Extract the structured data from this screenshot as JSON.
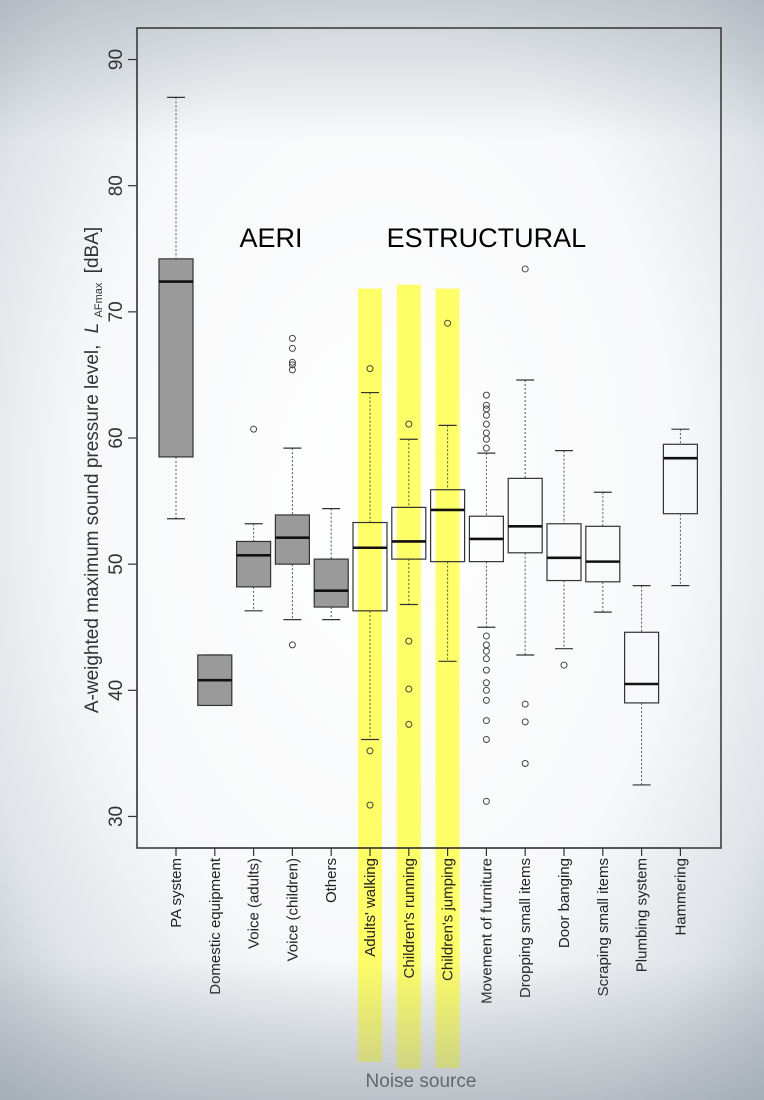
{
  "chart_data": {
    "type": "box",
    "xlabel": "Noise source",
    "ylabel_prefix": "A-weighted maximum sound pressure level,",
    "ylabel_symbol": "L",
    "ylabel_subscript": "AFmax",
    "ylabel_unit": "[dBA]",
    "ylim": [
      27.5,
      92.5
    ],
    "yticks": [
      30,
      40,
      50,
      60,
      70,
      80,
      90
    ],
    "grid": false,
    "categories": [
      "PA system",
      "Domestic equipment",
      "Voice (adults)",
      "Voice (children)",
      "Others",
      "Adults' walking",
      "Children's running",
      "Children's jumping",
      "Movement of furniture",
      "Dropping small items",
      "Door banging",
      "Scraping small items",
      "Plumbing system",
      "Hammering"
    ],
    "boxes": [
      {
        "min": 53.6,
        "q1": 58.5,
        "median": 72.4,
        "q3": 74.2,
        "max": 87.0,
        "outliers": [],
        "fill": "#9a9a9a"
      },
      {
        "min": 38.8,
        "q1": 38.8,
        "median": 40.8,
        "q3": 42.8,
        "max": 42.8,
        "outliers": [],
        "fill": "#9a9a9a"
      },
      {
        "min": 46.3,
        "q1": 48.2,
        "median": 50.7,
        "q3": 51.8,
        "max": 53.2,
        "outliers": [
          60.7
        ],
        "fill": "#9a9a9a"
      },
      {
        "min": 45.6,
        "q1": 50.0,
        "median": 52.1,
        "q3": 53.9,
        "max": 59.2,
        "outliers": [
          43.6,
          65.4,
          65.8,
          66.0,
          67.1,
          67.9
        ],
        "fill": "#9a9a9a"
      },
      {
        "min": 45.6,
        "q1": 46.6,
        "median": 47.9,
        "q3": 50.4,
        "max": 54.4,
        "outliers": [],
        "fill": "#9a9a9a"
      },
      {
        "min": 36.1,
        "q1": 46.3,
        "median": 51.3,
        "q3": 53.3,
        "max": 63.6,
        "outliers": [
          30.9,
          35.2,
          65.5
        ],
        "fill": "#ffffff"
      },
      {
        "min": 46.8,
        "q1": 50.4,
        "median": 51.8,
        "q3": 54.5,
        "max": 59.9,
        "outliers": [
          37.3,
          40.1,
          43.9,
          61.1
        ],
        "fill": "#ffffff"
      },
      {
        "min": 42.3,
        "q1": 50.2,
        "median": 54.3,
        "q3": 55.9,
        "max": 61.0,
        "outliers": [
          69.1
        ],
        "fill": "#ffffff"
      },
      {
        "min": 45.0,
        "q1": 50.2,
        "median": 52.0,
        "q3": 53.8,
        "max": 58.8,
        "outliers": [
          31.2,
          36.1,
          37.6,
          39.2,
          40.0,
          40.6,
          41.6,
          42.5,
          43.1,
          43.6,
          44.3,
          59.2,
          59.9,
          60.4,
          61.1,
          61.8,
          62.3,
          62.6,
          63.4
        ],
        "fill": "#ffffff"
      },
      {
        "min": 42.8,
        "q1": 50.9,
        "median": 53.0,
        "q3": 56.8,
        "max": 64.6,
        "outliers": [
          34.2,
          37.5,
          38.9,
          73.4
        ],
        "fill": "#ffffff"
      },
      {
        "min": 43.3,
        "q1": 48.7,
        "median": 50.5,
        "q3": 53.2,
        "max": 59.0,
        "outliers": [
          42.0
        ],
        "fill": "#ffffff"
      },
      {
        "min": 46.2,
        "q1": 48.6,
        "median": 50.2,
        "q3": 53.0,
        "max": 55.7,
        "outliers": [],
        "fill": "#ffffff"
      },
      {
        "min": 32.5,
        "q1": 39.0,
        "median": 40.5,
        "q3": 44.6,
        "max": 48.3,
        "outliers": [],
        "fill": "#ffffff"
      },
      {
        "min": 48.3,
        "q1": 54.0,
        "median": 58.4,
        "q3": 59.5,
        "max": 60.7,
        "outliers": [],
        "fill": "#ffffff"
      }
    ],
    "annotations": [
      {
        "text": "AERI",
        "category_span": [
          2,
          3
        ]
      },
      {
        "text": "ESTRUCTURAL",
        "category_span": [
          5,
          11
        ]
      }
    ],
    "highlighted_categories": [
      5,
      6,
      7
    ],
    "highlight_color": "#ffff3c"
  }
}
